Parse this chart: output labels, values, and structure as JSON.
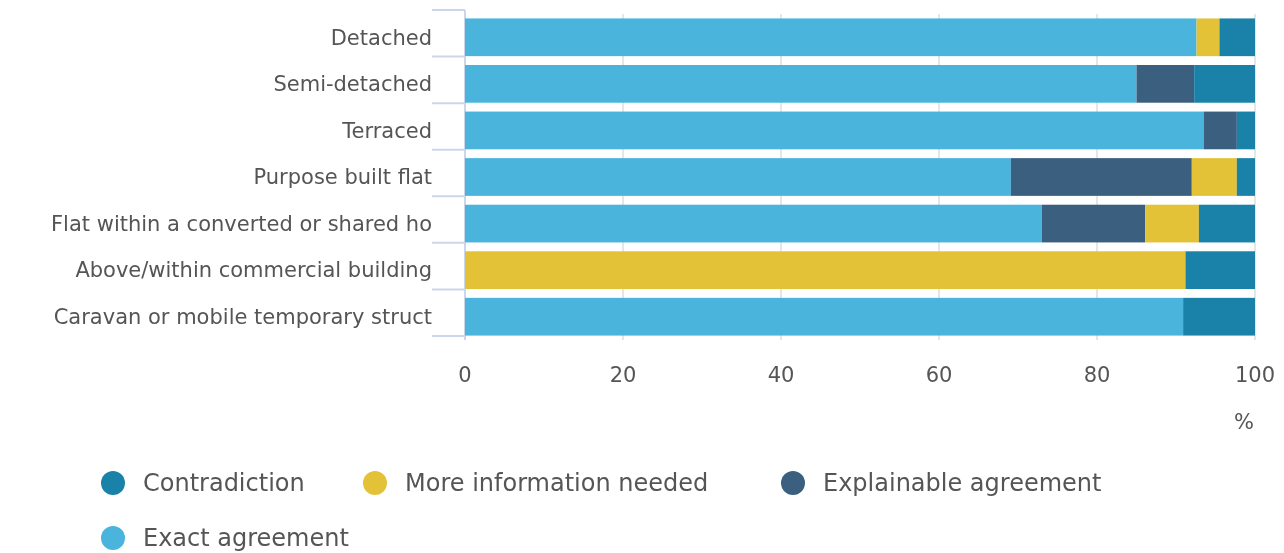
{
  "chart_data": {
    "type": "bar",
    "orientation": "horizontal",
    "stacked": true,
    "categories": [
      "Detached",
      "Semi-detached",
      "Terraced",
      "Purpose built flat",
      "Flat within a converted or shared ho",
      "Above/within commercial building",
      "Caravan or mobile temporary struct"
    ],
    "series": [
      {
        "name": "Exact agreement",
        "color": "#4ab4dc",
        "values": [
          92.6,
          85.0,
          93.5,
          69.1,
          73.0,
          0,
          90.9
        ]
      },
      {
        "name": "Explainable agreement",
        "color": "#3a5f7f",
        "values": [
          0,
          7.3,
          4.2,
          22.9,
          13.1,
          0,
          0
        ]
      },
      {
        "name": "More information needed",
        "color": "#e3c238",
        "values": [
          2.9,
          0,
          0,
          5.7,
          6.8,
          91.2,
          0
        ]
      },
      {
        "name": "Contradiction",
        "color": "#1a82a9",
        "values": [
          4.5,
          7.7,
          2.3,
          2.3,
          7.1,
          8.8,
          9.1
        ]
      }
    ],
    "xlim": [
      0,
      100
    ],
    "xticks": [
      0,
      20,
      40,
      60,
      80,
      100
    ],
    "xlabel": "%",
    "grid": "x",
    "legend": "bottom"
  }
}
